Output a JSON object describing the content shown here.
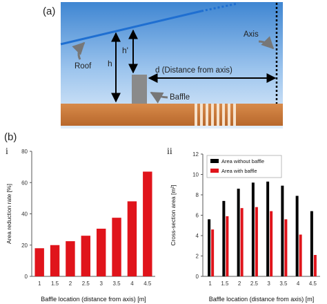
{
  "labels": {
    "panel_a": "(a)",
    "panel_b": "(b)",
    "sub_i": "i",
    "sub_ii": "ii"
  },
  "diagram": {
    "roof": "Roof",
    "h": "h",
    "h_prime": "h'",
    "distance": "d (Distance from axis)",
    "baffle": "Baffle",
    "axis": "Axis",
    "colors": {
      "sky_top": "#4a8fd6",
      "sky_bottom": "#cfe3f7",
      "ground": "#c9793a",
      "roof_line": "#1f6fd1",
      "baffle": "#8c8c8c"
    }
  },
  "chart_data": [
    {
      "type": "bar",
      "categories": [
        "1",
        "1.5",
        "2",
        "2.5",
        "3",
        "3.5",
        "4",
        "4.5"
      ],
      "values": [
        18,
        20,
        22.5,
        26,
        30.5,
        37.5,
        48,
        67
      ],
      "xlabel": "Baffle location (distance from axis) [m]",
      "ylabel": "Area reduction rate [%]",
      "ylim": [
        0,
        80
      ],
      "yticks": [
        "0",
        "20",
        "40",
        "60",
        "80"
      ],
      "color": "#e0141b",
      "grid": false
    },
    {
      "type": "bar",
      "categories": [
        "1",
        "1.5",
        "2",
        "2.5",
        "3",
        "3.5",
        "4",
        "4.5"
      ],
      "series": [
        {
          "name": "Area without baffle",
          "values": [
            5.6,
            7.4,
            8.6,
            9.2,
            9.3,
            8.9,
            7.9,
            6.4
          ],
          "color": "#000000"
        },
        {
          "name": "Area with baffle",
          "values": [
            4.6,
            5.9,
            6.7,
            6.8,
            6.4,
            5.6,
            4.1,
            2.1
          ],
          "color": "#e0141b"
        }
      ],
      "xlabel": "Baffle location (distance from axis) [m]",
      "ylabel": "Cross-section area [m²]",
      "ylim": [
        0,
        12
      ],
      "yticks": [
        "0",
        "2",
        "4",
        "6",
        "8",
        "10",
        "12"
      ],
      "legend": "top-left",
      "grid": false
    }
  ]
}
